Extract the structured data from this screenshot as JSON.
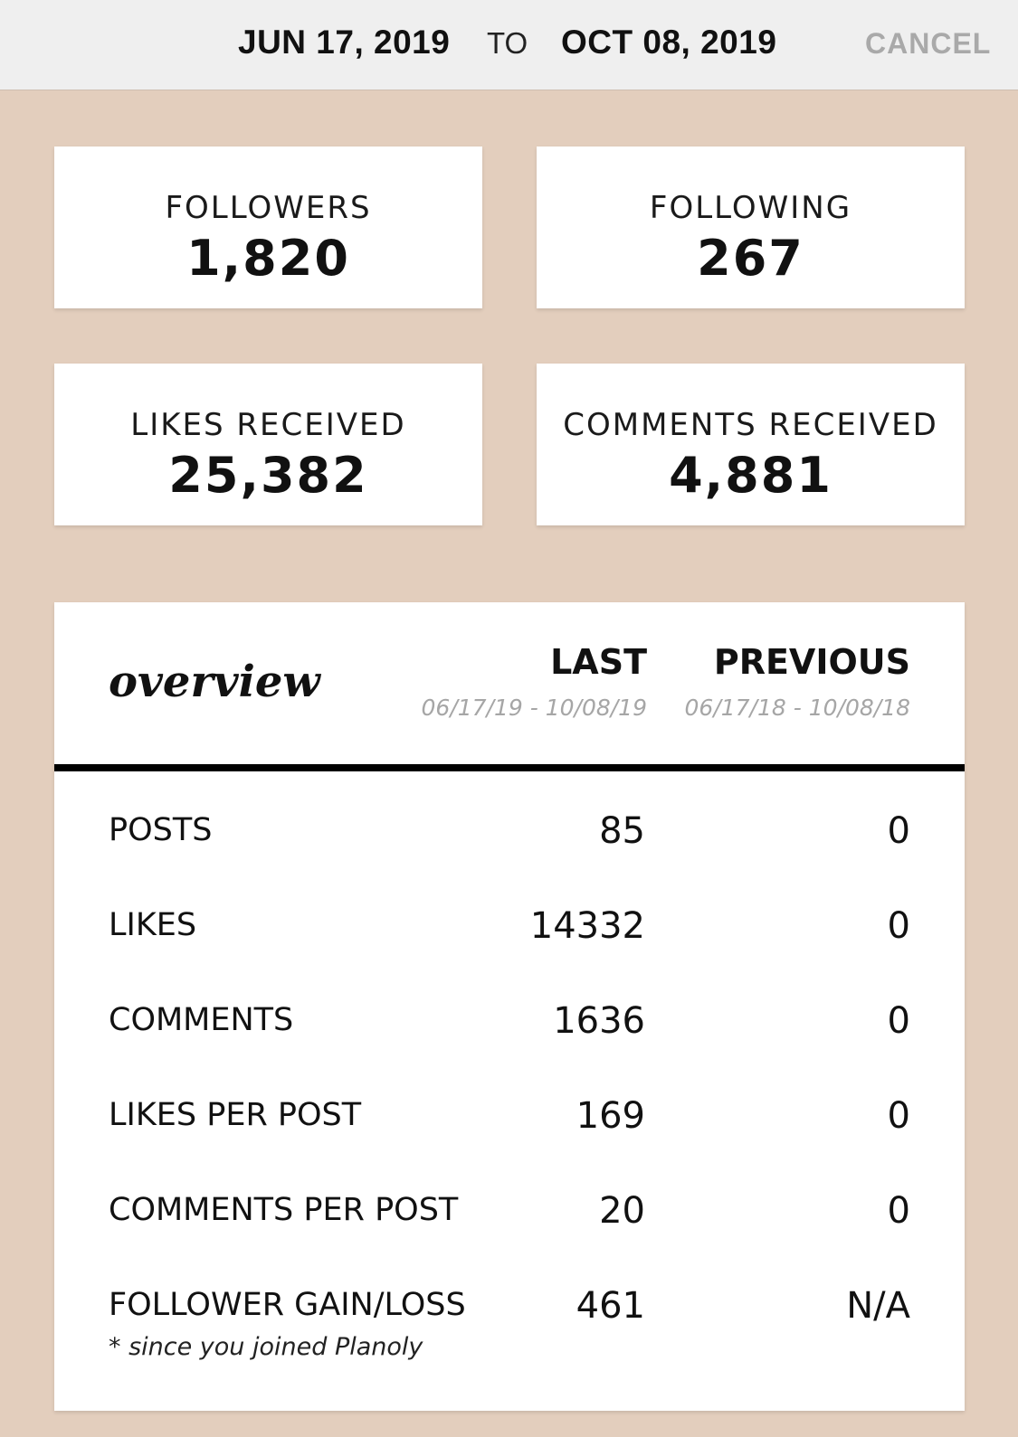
{
  "header": {
    "start_date": "JUN 17, 2019",
    "to_label": "TO",
    "end_date": "OCT 08, 2019",
    "cancel_label": "CANCEL"
  },
  "stats": {
    "followers": {
      "label": "FOLLOWERS",
      "value": "1,820"
    },
    "following": {
      "label": "FOLLOWING",
      "value": "267"
    },
    "likes_received": {
      "label": "LIKES RECEIVED",
      "value": "25,382"
    },
    "comments_received": {
      "label": "COMMENTS RECEIVED",
      "value": "4,881"
    }
  },
  "overview": {
    "title": "overview",
    "last": {
      "label": "LAST",
      "range": "06/17/19 - 10/08/19"
    },
    "previous": {
      "label": "PREVIOUS",
      "range": "06/17/18 - 10/08/18"
    },
    "rows": [
      {
        "label": "POSTS",
        "last": "85",
        "previous": "0"
      },
      {
        "label": "LIKES",
        "last": "14332",
        "previous": "0"
      },
      {
        "label": "COMMENTS",
        "last": "1636",
        "previous": "0"
      },
      {
        "label": "LIKES PER POST",
        "last": "169",
        "previous": "0"
      },
      {
        "label": "COMMENTS PER POST",
        "last": "20",
        "previous": "0"
      },
      {
        "label": "FOLLOWER GAIN/LOSS",
        "last": "461",
        "previous": "N/A"
      }
    ],
    "footnote": "* since you joined Planoly"
  },
  "colors": {
    "background": "#e3cebd",
    "topbar": "#efefef",
    "cancel": "#a9a9a9"
  }
}
